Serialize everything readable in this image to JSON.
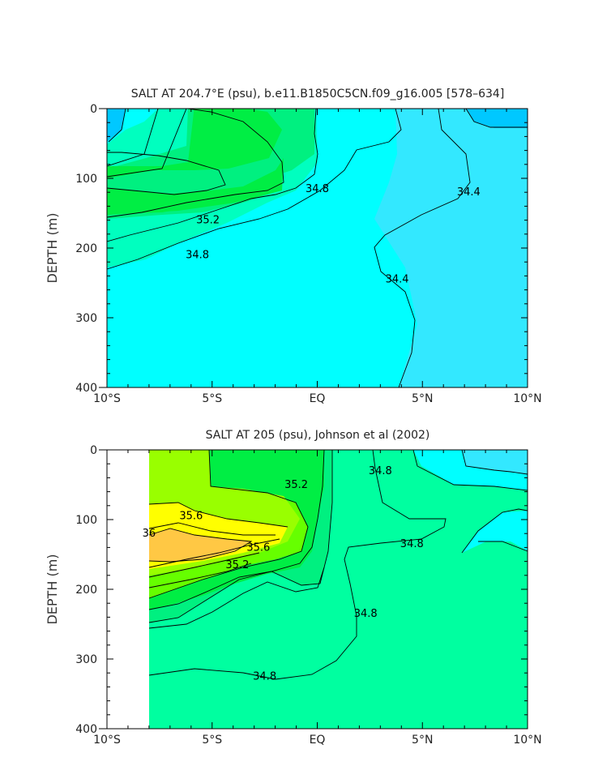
{
  "chart_data": [
    {
      "type": "contour",
      "title": "SALT AT 204.7°E (psu), b.e11.B1850C5CN.f09_g16.005 [578–634]",
      "ylabel": "DEPTH (m)",
      "xlabel": "",
      "x_ticks": [
        "10°S",
        "5°S",
        "EQ",
        "5°N",
        "10°N"
      ],
      "y_ticks": [
        "0",
        "100",
        "200",
        "300",
        "400"
      ],
      "xlim": [
        -10,
        10
      ],
      "ylim": [
        400,
        0
      ],
      "y_direction": "increasing downward",
      "fill_colors": {
        "34.2": "#00c8ff",
        "34.4": "#33e8ff",
        "34.6": "#00ffff",
        "34.8": "#00ffbf",
        "35.0": "#00f080",
        "35.2": "#00ee44"
      },
      "contour_labels": [
        {
          "text": "34.8",
          "lat": 0.0,
          "depth": 115
        },
        {
          "text": "34.4",
          "lat": 7.2,
          "depth": 120
        },
        {
          "text": "35.2",
          "lat": -5.2,
          "depth": 160
        },
        {
          "text": "34.8",
          "lat": -5.7,
          "depth": 210
        },
        {
          "text": "34.4",
          "lat": 3.8,
          "depth": 245
        }
      ]
    },
    {
      "type": "contour",
      "title": "SALT AT 205 (psu), Johnson et al (2002)",
      "ylabel": "DEPTH (m)",
      "xlabel": "",
      "x_ticks": [
        "10°S",
        "5°S",
        "EQ",
        "5°N",
        "10°N"
      ],
      "y_ticks": [
        "0",
        "100",
        "200",
        "300",
        "400"
      ],
      "xlim": [
        -10,
        10
      ],
      "ylim": [
        400,
        0
      ],
      "data_start_lat": -8,
      "fill_colors": {
        "34.4": "#00ffff",
        "34.6": "#00ffbf",
        "34.8": "#00ffa0",
        "35.0": "#00f080",
        "35.2": "#00ee44",
        "35.4": "#66ff00",
        "35.6": "#99ff00",
        "35.8": "#ffff00",
        "36.0": "#ffc844"
      },
      "contour_labels": [
        {
          "text": "35.2",
          "lat": -1.0,
          "depth": 50
        },
        {
          "text": "34.8",
          "lat": 3.0,
          "depth": 30
        },
        {
          "text": "35.6",
          "lat": -6.0,
          "depth": 95
        },
        {
          "text": "36",
          "lat": -8.0,
          "depth": 120
        },
        {
          "text": "35.6",
          "lat": -2.8,
          "depth": 140
        },
        {
          "text": "35.2",
          "lat": -3.8,
          "depth": 165
        },
        {
          "text": "34.8",
          "lat": 4.5,
          "depth": 135
        },
        {
          "text": "34.8",
          "lat": 2.3,
          "depth": 235
        },
        {
          "text": "34.8",
          "lat": -2.5,
          "depth": 325
        }
      ]
    }
  ]
}
